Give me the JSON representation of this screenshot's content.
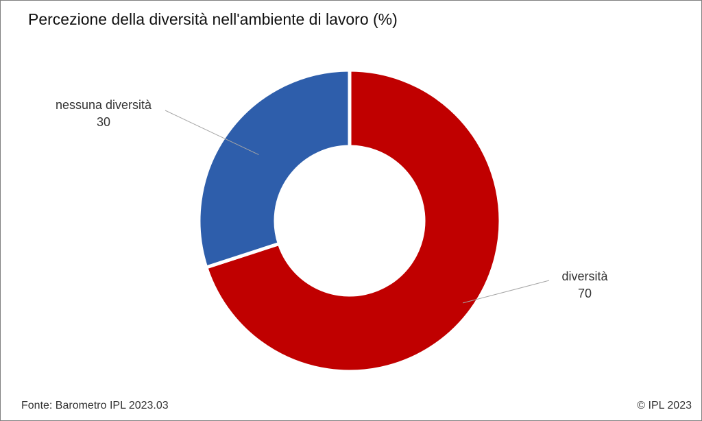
{
  "chart_data": {
    "type": "pie",
    "title": "Percezione della diversità nell'ambiente di lavoro (%)",
    "categories": [
      "diversità",
      "nessuna diversità"
    ],
    "values": [
      70,
      30
    ],
    "colors": [
      "#c00000",
      "#2e5eab"
    ],
    "donut": true
  },
  "footer": {
    "source": "Fonte: Barometro IPL 2023.03",
    "copyright": "© IPL 2023"
  }
}
